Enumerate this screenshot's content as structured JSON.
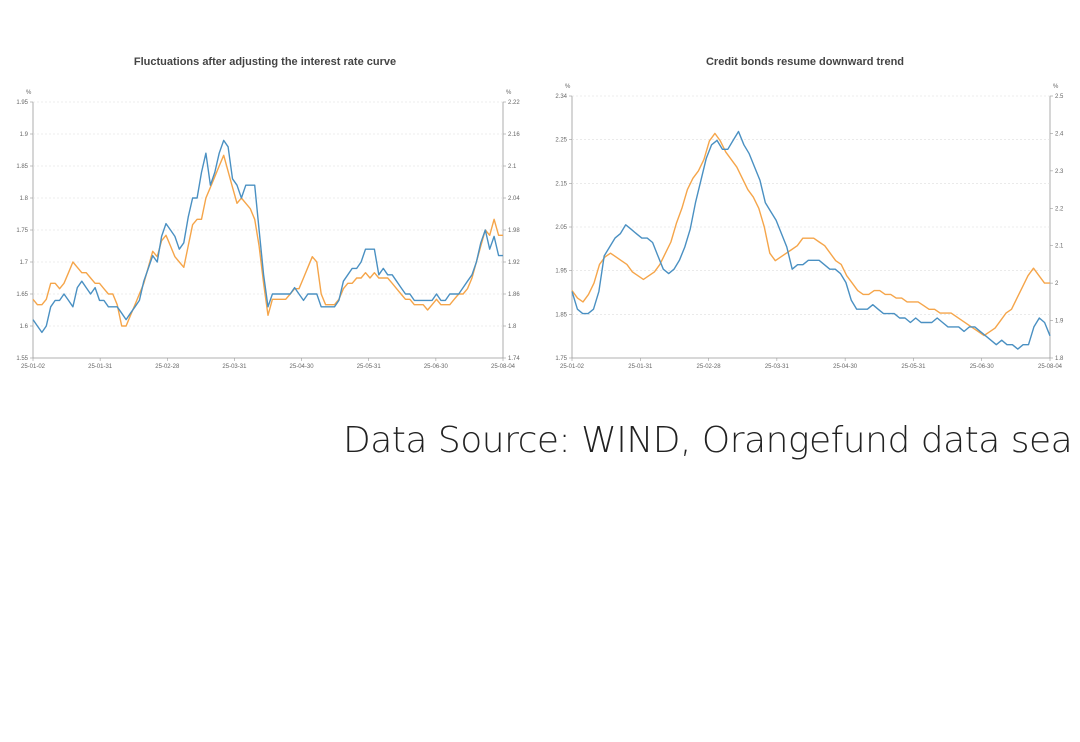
{
  "chart_data": [
    {
      "type": "line",
      "title": "Fluctuations after adjusting the interest rate curve",
      "left_unit": "%",
      "right_unit": "%",
      "x_ticks": [
        "25-01-02",
        "25-01-31",
        "25-02-28",
        "25-03-31",
        "25-04-30",
        "25-05-31",
        "25-06-30",
        "25-08-04"
      ],
      "y_left_ticks": [
        "1.55",
        "1.6",
        "1.65",
        "1.7",
        "1.75",
        "1.8",
        "1.85",
        "1.9",
        "1.95"
      ],
      "y_right_ticks": [
        "1.74",
        "1.8",
        "1.86",
        "1.92",
        "1.98",
        "2.04",
        "2.1",
        "2.16",
        "2.22"
      ],
      "ylim_left": [
        1.55,
        1.95
      ],
      "ylim_right": [
        1.74,
        2.22
      ],
      "grid": true,
      "colors": {
        "blue": "#4a90c2",
        "orange": "#f5a54a"
      },
      "series": [
        {
          "axis": "left",
          "color": "#4a90c2",
          "values": [
            1.61,
            1.6,
            1.59,
            1.6,
            1.63,
            1.64,
            1.64,
            1.65,
            1.64,
            1.63,
            1.66,
            1.67,
            1.66,
            1.65,
            1.66,
            1.64,
            1.64,
            1.63,
            1.63,
            1.63,
            1.62,
            1.61,
            1.62,
            1.63,
            1.64,
            1.67,
            1.69,
            1.71,
            1.7,
            1.74,
            1.76,
            1.75,
            1.74,
            1.72,
            1.73,
            1.77,
            1.8,
            1.8,
            1.84,
            1.87,
            1.82,
            1.84,
            1.87,
            1.89,
            1.88,
            1.83,
            1.82,
            1.8,
            1.82,
            1.82,
            1.82,
            1.75,
            1.68,
            1.63,
            1.65,
            1.65,
            1.65,
            1.65,
            1.65,
            1.66,
            1.65,
            1.64,
            1.65,
            1.65,
            1.65,
            1.63,
            1.63,
            1.63,
            1.63,
            1.64,
            1.67,
            1.68,
            1.69,
            1.69,
            1.7,
            1.72,
            1.72,
            1.72,
            1.68,
            1.69,
            1.68,
            1.68,
            1.67,
            1.66,
            1.65,
            1.65,
            1.64,
            1.64,
            1.64,
            1.64,
            1.64,
            1.65,
            1.64,
            1.64,
            1.65,
            1.65,
            1.65,
            1.66,
            1.67,
            1.68,
            1.7,
            1.73,
            1.75,
            1.72,
            1.74,
            1.71,
            1.71
          ]
        },
        {
          "axis": "right",
          "color": "#f5a54a",
          "values": [
            1.85,
            1.84,
            1.84,
            1.85,
            1.88,
            1.88,
            1.87,
            1.88,
            1.9,
            1.92,
            1.91,
            1.9,
            1.9,
            1.89,
            1.88,
            1.88,
            1.87,
            1.86,
            1.86,
            1.84,
            1.8,
            1.8,
            1.82,
            1.84,
            1.86,
            1.88,
            1.91,
            1.94,
            1.93,
            1.96,
            1.97,
            1.95,
            1.93,
            1.92,
            1.91,
            1.95,
            1.99,
            2.0,
            2.0,
            2.04,
            2.06,
            2.08,
            2.1,
            2.12,
            2.09,
            2.06,
            2.03,
            2.04,
            2.03,
            2.02,
            2.0,
            1.95,
            1.88,
            1.82,
            1.85,
            1.85,
            1.85,
            1.85,
            1.86,
            1.87,
            1.87,
            1.89,
            1.91,
            1.93,
            1.92,
            1.86,
            1.84,
            1.84,
            1.84,
            1.85,
            1.87,
            1.88,
            1.88,
            1.89,
            1.89,
            1.9,
            1.89,
            1.9,
            1.89,
            1.89,
            1.89,
            1.88,
            1.87,
            1.86,
            1.85,
            1.85,
            1.84,
            1.84,
            1.84,
            1.83,
            1.84,
            1.85,
            1.84,
            1.84,
            1.84,
            1.85,
            1.86,
            1.86,
            1.87,
            1.89,
            1.92,
            1.95,
            1.98,
            1.97,
            2.0,
            1.97,
            1.97
          ]
        }
      ]
    },
    {
      "type": "line",
      "title": "Credit bonds resume downward trend",
      "left_unit": "%",
      "right_unit": "%",
      "x_ticks": [
        "25-01-02",
        "25-01-31",
        "25-02-28",
        "25-03-31",
        "25-04-30",
        "25-05-31",
        "25-06-30",
        "25-08-04"
      ],
      "y_left_ticks": [
        "1.75",
        "1.85",
        "1.95",
        "2.05",
        "2.15",
        "2.25",
        "2.34"
      ],
      "y_right_ticks": [
        "1.8",
        "1.9",
        "2",
        "2.1",
        "2.2",
        "2.3",
        "2.4",
        "2.5"
      ],
      "ylim_left": [
        1.75,
        2.34
      ],
      "ylim_right": [
        1.8,
        2.5
      ],
      "grid": true,
      "colors": {
        "blue": "#4a90c2",
        "orange": "#f5a54a"
      },
      "series": [
        {
          "axis": "left",
          "color": "#4a90c2",
          "values": [
            1.9,
            1.86,
            1.85,
            1.85,
            1.86,
            1.9,
            1.98,
            2.0,
            2.02,
            2.03,
            2.05,
            2.04,
            2.03,
            2.02,
            2.02,
            2.01,
            1.98,
            1.95,
            1.94,
            1.95,
            1.97,
            2.0,
            2.04,
            2.1,
            2.15,
            2.2,
            2.23,
            2.24,
            2.22,
            2.22,
            2.24,
            2.26,
            2.23,
            2.21,
            2.18,
            2.15,
            2.1,
            2.08,
            2.06,
            2.03,
            2.0,
            1.95,
            1.96,
            1.96,
            1.97,
            1.97,
            1.97,
            1.96,
            1.95,
            1.95,
            1.94,
            1.92,
            1.88,
            1.86,
            1.86,
            1.86,
            1.87,
            1.86,
            1.85,
            1.85,
            1.85,
            1.84,
            1.84,
            1.83,
            1.84,
            1.83,
            1.83,
            1.83,
            1.84,
            1.83,
            1.82,
            1.82,
            1.82,
            1.81,
            1.82,
            1.82,
            1.81,
            1.8,
            1.79,
            1.78,
            1.79,
            1.78,
            1.78,
            1.77,
            1.78,
            1.78,
            1.82,
            1.84,
            1.83,
            1.8
          ]
        },
        {
          "axis": "right",
          "color": "#f5a54a",
          "values": [
            1.98,
            1.96,
            1.95,
            1.97,
            2.0,
            2.05,
            2.07,
            2.08,
            2.07,
            2.06,
            2.05,
            2.03,
            2.02,
            2.01,
            2.02,
            2.03,
            2.05,
            2.08,
            2.11,
            2.16,
            2.2,
            2.25,
            2.28,
            2.3,
            2.33,
            2.38,
            2.4,
            2.38,
            2.35,
            2.33,
            2.31,
            2.28,
            2.25,
            2.23,
            2.2,
            2.15,
            2.08,
            2.06,
            2.07,
            2.08,
            2.09,
            2.1,
            2.12,
            2.12,
            2.12,
            2.11,
            2.1,
            2.08,
            2.06,
            2.05,
            2.02,
            2.0,
            1.98,
            1.97,
            1.97,
            1.98,
            1.98,
            1.97,
            1.97,
            1.96,
            1.96,
            1.95,
            1.95,
            1.95,
            1.94,
            1.93,
            1.93,
            1.92,
            1.92,
            1.92,
            1.91,
            1.9,
            1.89,
            1.88,
            1.87,
            1.86,
            1.87,
            1.88,
            1.9,
            1.92,
            1.93,
            1.96,
            1.99,
            2.02,
            2.04,
            2.02,
            2.0,
            2.0
          ]
        }
      ]
    }
  ],
  "source_text": "Data Source: WIND, Orangefund data sea"
}
